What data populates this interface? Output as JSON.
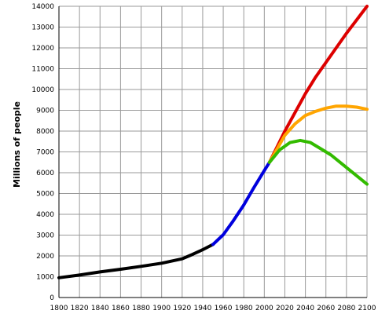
{
  "chart_data": {
    "type": "line",
    "title": "",
    "xlabel": "",
    "ylabel": "Millions of people",
    "xlim": [
      1800,
      2100
    ],
    "ylim": [
      0,
      14000
    ],
    "grid": true,
    "x_ticks": [
      1800,
      1820,
      1840,
      1860,
      1880,
      1900,
      1920,
      1940,
      1960,
      1980,
      2000,
      2020,
      2040,
      2060,
      2080,
      2100
    ],
    "y_ticks": [
      0,
      1000,
      2000,
      3000,
      4000,
      5000,
      6000,
      7000,
      8000,
      9000,
      10000,
      11000,
      12000,
      13000,
      14000
    ],
    "series": [
      {
        "color": "#000000",
        "x": [
          1800,
          1820,
          1840,
          1860,
          1880,
          1900,
          1920,
          1930,
          1940,
          1950
        ],
        "y": [
          950,
          1080,
          1230,
          1360,
          1500,
          1650,
          1860,
          2070,
          2300,
          2550
        ]
      },
      {
        "color": "#0000dd",
        "x": [
          1950,
          1960,
          1970,
          1980,
          1990,
          2000,
          2005
        ],
        "y": [
          2550,
          3020,
          3700,
          4450,
          5300,
          6100,
          6500
        ]
      },
      {
        "color": "#dd0000",
        "x": [
          2005,
          2020,
          2040,
          2050,
          2060,
          2080,
          2100
        ],
        "y": [
          6500,
          8000,
          9800,
          10600,
          11300,
          12700,
          14000
        ]
      },
      {
        "color": "#ffa500",
        "x": [
          2005,
          2020,
          2030,
          2040,
          2050,
          2060,
          2070,
          2080,
          2090,
          2100
        ],
        "y": [
          6500,
          7800,
          8350,
          8750,
          8950,
          9100,
          9200,
          9200,
          9150,
          9050
        ]
      },
      {
        "color": "#33bb00",
        "x": [
          2005,
          2015,
          2025,
          2035,
          2045,
          2055,
          2065,
          2075,
          2085,
          2100
        ],
        "y": [
          6500,
          7100,
          7450,
          7550,
          7450,
          7150,
          6850,
          6450,
          6050,
          5450
        ]
      }
    ]
  }
}
